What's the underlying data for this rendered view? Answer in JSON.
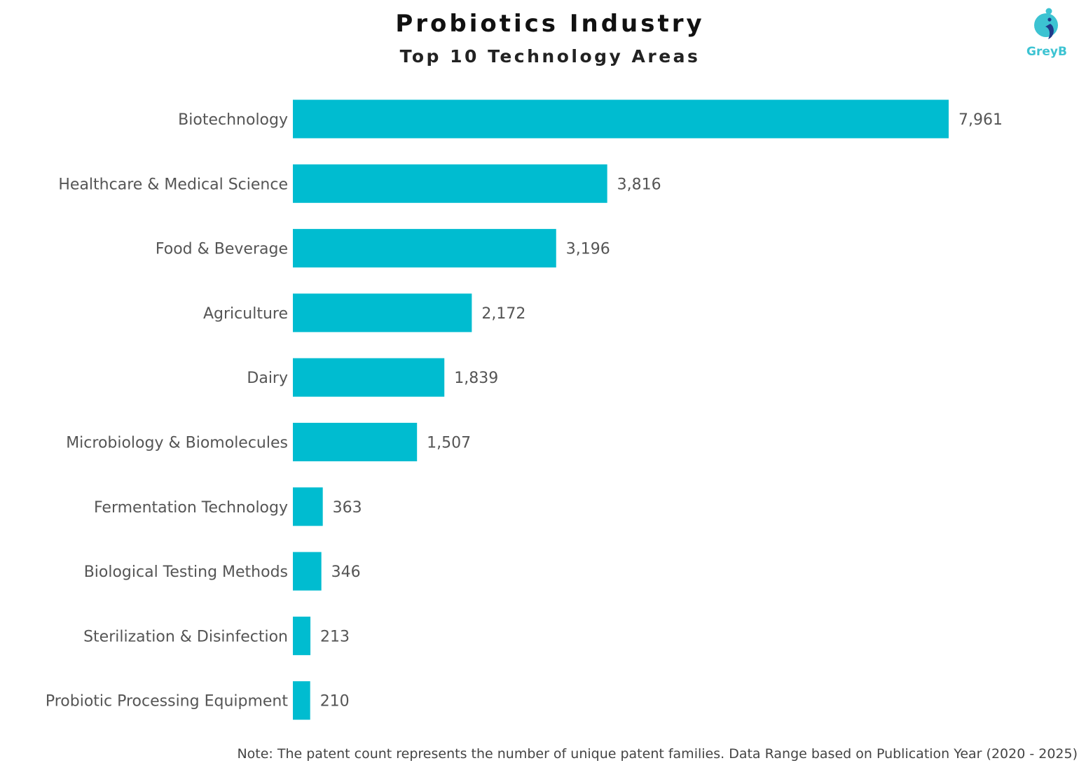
{
  "title": "Probiotics Industry",
  "subtitle": "Top 10 Technology Areas",
  "logo": {
    "text": "GreyB",
    "icon": "greyb-logo-icon"
  },
  "colors": {
    "bar": "#00bcd0",
    "label": "#555555",
    "logo_primary": "#3cc3d2",
    "logo_accent": "#1e3a8a"
  },
  "chart_data": {
    "type": "bar",
    "orientation": "horizontal",
    "categories": [
      "Biotechnology",
      "Healthcare & Medical Science",
      "Food & Beverage",
      "Agriculture",
      "Dairy",
      "Microbiology & Biomolecules",
      "Fermentation Technology",
      "Biological Testing Methods",
      "Sterilization & Disinfection",
      "Probiotic Processing Equipment"
    ],
    "values": [
      7961,
      3816,
      3196,
      2172,
      1839,
      1507,
      363,
      346,
      213,
      210
    ],
    "value_labels": [
      "7,961",
      "3,816",
      "3,196",
      "2,172",
      "1,839",
      "1,507",
      "363",
      "346",
      "213",
      "210"
    ],
    "xlim": [
      0,
      7961
    ],
    "grid": false,
    "legend": "none"
  },
  "note": "Note: The patent count represents the number of unique patent families. Data Range based on Publication Year (2020 - 2025)"
}
